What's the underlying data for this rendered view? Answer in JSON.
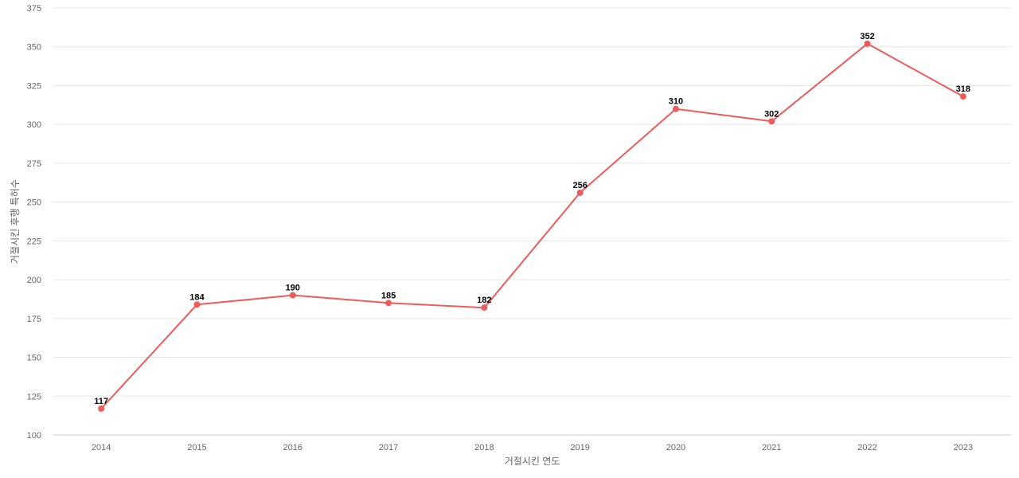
{
  "chart_data": {
    "type": "line",
    "title": "",
    "xlabel": "거절시킨 연도",
    "ylabel": "거절시킨 후행 특허수",
    "x": [
      "2014",
      "2015",
      "2016",
      "2017",
      "2018",
      "2019",
      "2020",
      "2021",
      "2022",
      "2023"
    ],
    "series": [
      {
        "values": [
          117,
          184,
          190,
          185,
          182,
          256,
          310,
          302,
          352,
          318
        ],
        "color": "#ef5b5b"
      }
    ],
    "ylim": [
      100,
      375
    ],
    "yticks": [
      100,
      125,
      150,
      175,
      200,
      225,
      250,
      275,
      300,
      325,
      350,
      375
    ],
    "grid": true,
    "data_labels": true
  }
}
